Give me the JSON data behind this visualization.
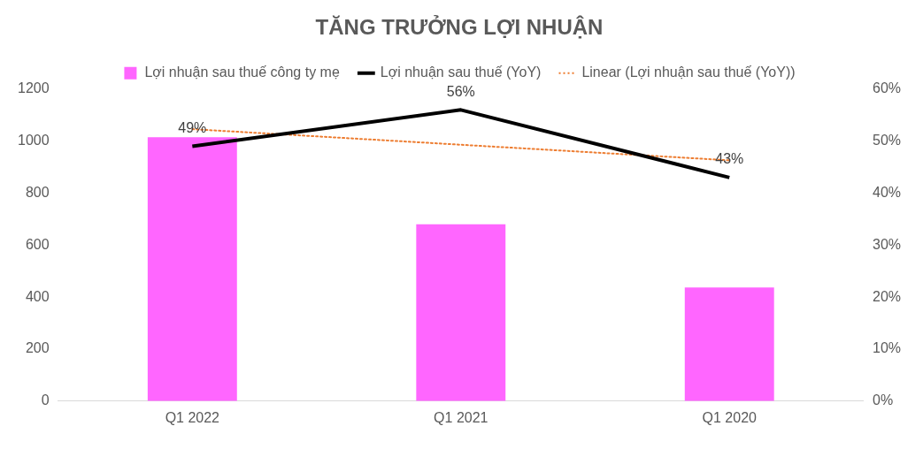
{
  "chart_data": {
    "type": "bar",
    "title": "TĂNG TRƯỞNG LỢI NHUẬN",
    "categories": [
      "Q1 2022",
      "Q1 2021",
      "Q1 2020"
    ],
    "series": [
      {
        "name": "Lợi nhuận sau thuế công ty mẹ",
        "color": "#ff66ff",
        "values": [
          1015,
          680,
          437
        ]
      },
      {
        "name": "Lợi nhuận sau thuế (YoY)",
        "type": "line",
        "axis": "y2",
        "color": "#000000",
        "line_style": "solid",
        "values": [
          49,
          56,
          43
        ],
        "value_labels": [
          "49%",
          "56%",
          "43%"
        ]
      },
      {
        "name": "Linear (Lợi nhuận sau thuế (YoY))",
        "type": "line",
        "axis": "y2",
        "color": "#ed7d31",
        "line_style": "dotted",
        "values": [
          52.3,
          49.3,
          46.3
        ]
      }
    ],
    "ylim": [
      0,
      1200
    ],
    "yticks": [
      0,
      200,
      400,
      600,
      800,
      1000,
      1200
    ],
    "y2lim": [
      0,
      60
    ],
    "y2ticks": [
      {
        "value": 0,
        "label": "0%"
      },
      {
        "value": 10,
        "label": "10%"
      },
      {
        "value": 20,
        "label": "20%"
      },
      {
        "value": 30,
        "label": "30%"
      },
      {
        "value": 40,
        "label": "40%"
      },
      {
        "value": 50,
        "label": "50%"
      },
      {
        "value": 60,
        "label": "60%"
      }
    ],
    "grid": false,
    "legend": "top",
    "marker": "none"
  }
}
